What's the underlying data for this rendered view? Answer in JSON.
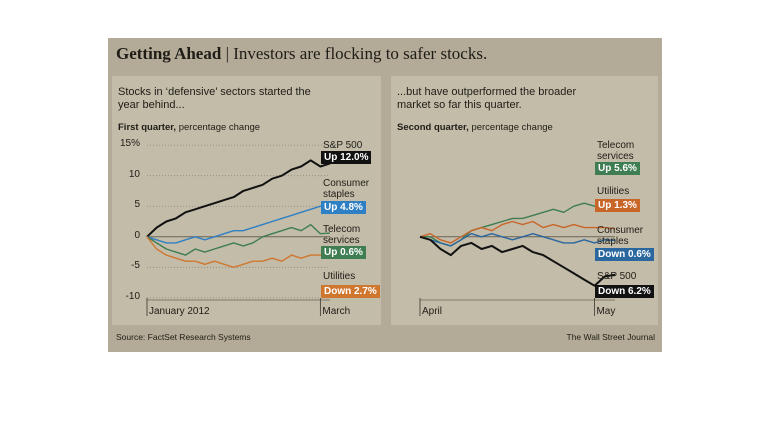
{
  "title": "Getting Ahead",
  "subtitle": "Investors are flocking to safer stocks.",
  "chart_data": [
    {
      "type": "line",
      "heading": "Stocks in ‘defensive’ sectors started the year behind...",
      "period": "First quarter,",
      "unit_note": "percentage change",
      "categories": [
        "January 2012",
        null,
        null,
        null,
        null,
        null,
        null,
        null,
        null,
        null,
        null,
        null,
        null,
        null,
        null,
        null,
        null,
        null,
        "March",
        null
      ],
      "ylim": [
        -11,
        16
      ],
      "yticks": [
        {
          "value": 15,
          "label": "15%"
        },
        10,
        5,
        0,
        -5,
        -10
      ],
      "grid": true,
      "series": [
        {
          "name": "S&P 500",
          "color": "#111111",
          "end_label": "Up 12.0%",
          "values": [
            0,
            1.5,
            2.5,
            3,
            4,
            4.5,
            5,
            5.5,
            6,
            6.5,
            7.5,
            8,
            8.5,
            9.5,
            10,
            11,
            11.5,
            12.5,
            11.5,
            12.0
          ]
        },
        {
          "name": "Consumer staples",
          "color": "#2f7fc4",
          "end_label": "Up 4.8%",
          "values": [
            0,
            -0.5,
            -1,
            -1,
            -0.5,
            0,
            -0.5,
            0,
            0.5,
            1,
            1,
            1.5,
            2,
            2.5,
            3,
            3.5,
            4,
            4.5,
            5,
            4.8
          ]
        },
        {
          "name": "Telecom services",
          "color": "#3f7d52",
          "end_label": "Up 0.6%",
          "values": [
            0,
            -1,
            -2,
            -2.5,
            -3,
            -2,
            -2.5,
            -2,
            -1.5,
            -1,
            -1.5,
            -1,
            0,
            0.5,
            1,
            1.5,
            1,
            2,
            0.5,
            0.6
          ]
        },
        {
          "name": "Utilities",
          "color": "#d0772f",
          "end_label": "Down 2.7%",
          "values": [
            0,
            -2,
            -3,
            -3.5,
            -4,
            -4,
            -4.5,
            -4,
            -4.5,
            -5,
            -4.5,
            -4,
            -4,
            -3.5,
            -4,
            -3,
            -3.5,
            -3,
            -3,
            -2.7
          ]
        }
      ]
    },
    {
      "type": "line",
      "heading": "...but have outperformed the broader market so far this quarter.",
      "period": "Second quarter,",
      "unit_note": "percentage change",
      "categories": [
        "April",
        null,
        null,
        null,
        null,
        null,
        null,
        null,
        null,
        null,
        null,
        null,
        null,
        null,
        null,
        null,
        null,
        "May",
        null,
        null
      ],
      "ylim": [
        -11,
        16
      ],
      "series": [
        {
          "name": "Telecom services",
          "color": "#3f7d52",
          "end_label": "Up 5.6%",
          "values": [
            0,
            0,
            -1,
            -1.5,
            -0.5,
            1,
            1.5,
            2,
            2.5,
            3,
            3,
            3.5,
            4,
            4.5,
            4,
            5,
            5.5,
            5,
            5.5,
            5.6
          ]
        },
        {
          "name": "Utilities",
          "color": "#c8662a",
          "end_label": "Up 1.3%",
          "values": [
            0,
            0.5,
            -0.5,
            -1,
            0,
            1,
            1.5,
            1,
            2,
            2.5,
            2,
            2.5,
            1.5,
            2,
            1.5,
            2,
            1.5,
            1.5,
            1.5,
            1.3
          ]
        },
        {
          "name": "Consumer staples",
          "color": "#2a679e",
          "end_label": "Down 0.6%",
          "values": [
            0,
            -0.5,
            -1,
            -1.5,
            -0.5,
            0.5,
            0,
            0.5,
            0,
            -0.5,
            0,
            0.5,
            0,
            -0.5,
            -1,
            -1,
            -0.5,
            -1,
            -0.5,
            -0.6
          ]
        },
        {
          "name": "S&P 500",
          "color": "#111111",
          "end_label": "Down 6.2%",
          "values": [
            0,
            -0.5,
            -2,
            -3,
            -1.5,
            -1,
            -2,
            -1.5,
            -2.5,
            -2,
            -1.5,
            -2.5,
            -3,
            -4,
            -5,
            -6,
            -7,
            -8,
            -6.5,
            -6.2
          ]
        }
      ]
    }
  ],
  "source": "Source: FactSet Research Systems",
  "credit": "The Wall Street Journal"
}
